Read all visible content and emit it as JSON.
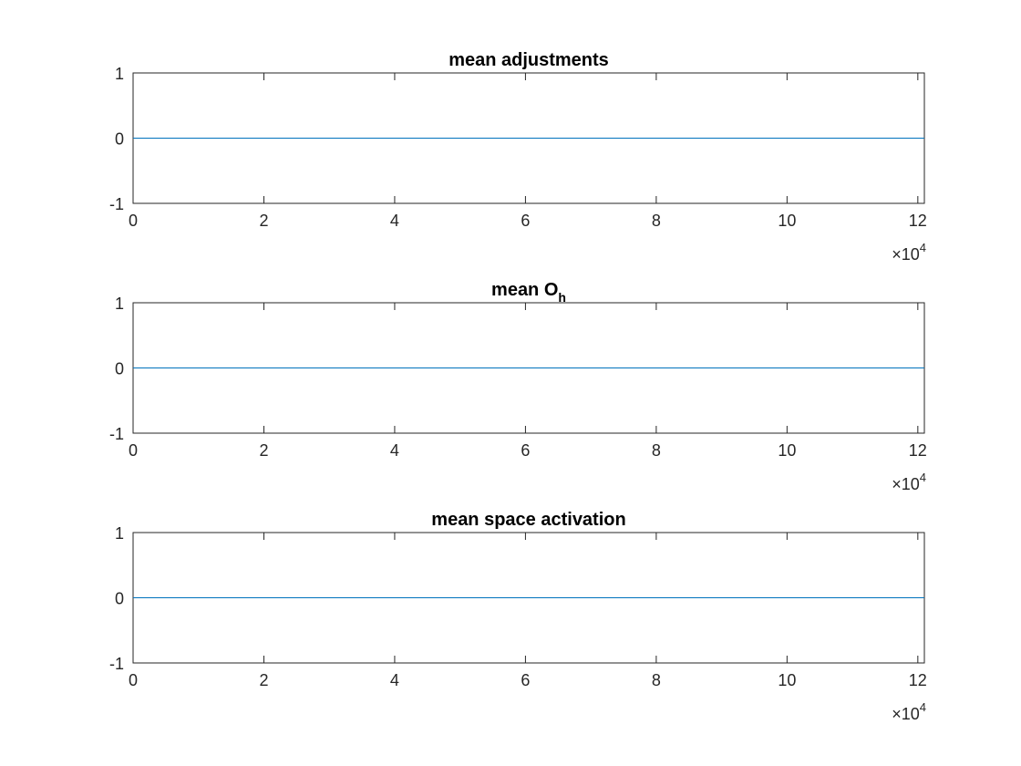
{
  "chart_data": [
    {
      "type": "line",
      "title": "mean adjustments",
      "xlabel": "",
      "ylabel": "",
      "xlim": [
        0,
        121000
      ],
      "ylim": [
        -1,
        1
      ],
      "x_multiplier": "×10",
      "x_multiplier_exp": "4",
      "xticks": [
        0,
        20000,
        40000,
        60000,
        80000,
        100000,
        120000
      ],
      "xtick_labels": [
        "0",
        "2",
        "4",
        "6",
        "8",
        "10",
        "12"
      ],
      "yticks": [
        -1,
        0,
        1
      ],
      "ytick_labels": [
        "-1",
        "0",
        "1"
      ],
      "grid": false,
      "series": [
        {
          "color": "#0072bd",
          "x": [
            0,
            121000
          ],
          "y": [
            0,
            0
          ]
        }
      ]
    },
    {
      "type": "line",
      "title": "mean O",
      "title_subscript": "h",
      "xlabel": "",
      "ylabel": "",
      "xlim": [
        0,
        121000
      ],
      "ylim": [
        -1,
        1
      ],
      "x_multiplier": "×10",
      "x_multiplier_exp": "4",
      "xticks": [
        0,
        20000,
        40000,
        60000,
        80000,
        100000,
        120000
      ],
      "xtick_labels": [
        "0",
        "2",
        "4",
        "6",
        "8",
        "10",
        "12"
      ],
      "yticks": [
        -1,
        0,
        1
      ],
      "ytick_labels": [
        "-1",
        "0",
        "1"
      ],
      "grid": false,
      "series": [
        {
          "color": "#0072bd",
          "x": [
            0,
            121000
          ],
          "y": [
            0,
            0
          ]
        }
      ]
    },
    {
      "type": "line",
      "title": "mean space activation",
      "xlabel": "",
      "ylabel": "",
      "xlim": [
        0,
        121000
      ],
      "ylim": [
        -1,
        1
      ],
      "x_multiplier": "×10",
      "x_multiplier_exp": "4",
      "xticks": [
        0,
        20000,
        40000,
        60000,
        80000,
        100000,
        120000
      ],
      "xtick_labels": [
        "0",
        "2",
        "4",
        "6",
        "8",
        "10",
        "12"
      ],
      "yticks": [
        -1,
        0,
        1
      ],
      "ytick_labels": [
        "-1",
        "0",
        "1"
      ],
      "grid": false,
      "series": [
        {
          "color": "#0072bd",
          "x": [
            0,
            121000
          ],
          "y": [
            0,
            0
          ]
        }
      ]
    }
  ]
}
